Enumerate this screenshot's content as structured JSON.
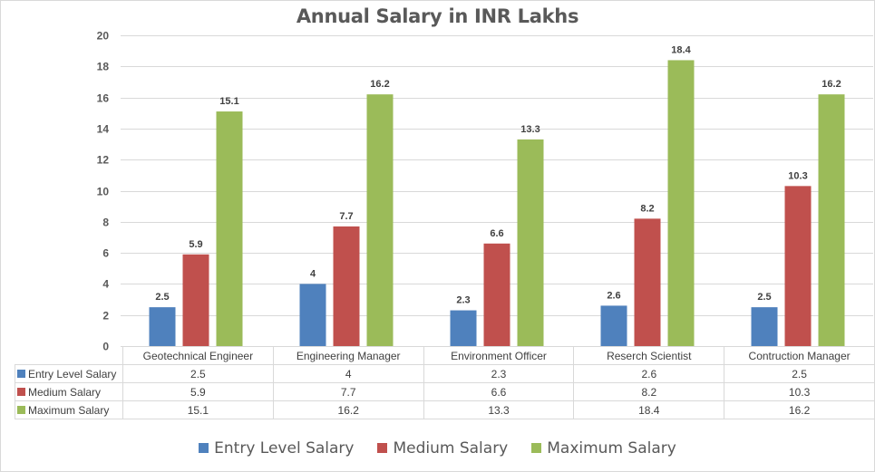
{
  "chart_data": {
    "type": "bar",
    "title": "Annual Salary in INR Lakhs",
    "xlabel": "",
    "ylabel": "",
    "ylim": [
      0,
      20
    ],
    "yticks": [
      0,
      2,
      4,
      6,
      8,
      10,
      12,
      14,
      16,
      18,
      20
    ],
    "grid": true,
    "legend_position": "bottom",
    "data_table": true,
    "categories": [
      "Geotechnical Engineer",
      "Engineering Manager",
      "Environment Officer",
      "Reserch Scientist",
      "Contruction Manager"
    ],
    "series": [
      {
        "name": "Entry Level Salary",
        "color": "#4f81bd",
        "values": [
          2.5,
          4,
          2.3,
          2.6,
          2.5
        ]
      },
      {
        "name": "Medium Salary",
        "color": "#c0504d",
        "values": [
          5.9,
          7.7,
          6.6,
          8.2,
          10.3
        ]
      },
      {
        "name": "Maximum Salary",
        "color": "#9bbb59",
        "values": [
          15.1,
          16.2,
          13.3,
          18.4,
          16.2
        ]
      }
    ]
  }
}
